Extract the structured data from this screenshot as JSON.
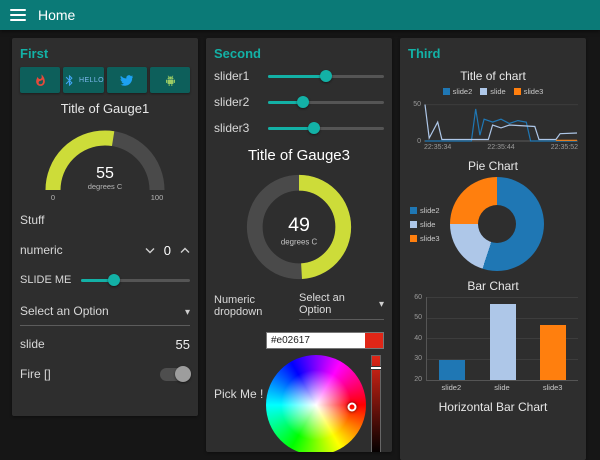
{
  "header": {
    "title": "Home"
  },
  "colors": {
    "accent": "#13b1a6",
    "gauge": "#cddc39",
    "header-bg": "#0b7a77",
    "panel-bg": "#2e2e2e",
    "page-bg": "#161616",
    "button-bg": "#0d5f5b"
  },
  "first": {
    "title": "First",
    "buttons": {
      "hello_label": "HELLO"
    },
    "gauge1": {
      "title": "Title of Gauge1",
      "value": 55,
      "units": "degrees C",
      "min": 0,
      "max": 100
    },
    "stuff_label": "Stuff",
    "numeric": {
      "label": "numeric",
      "value": 0
    },
    "slide_me": {
      "label": "SLIDE ME",
      "value": 30,
      "min": 0,
      "max": 100
    },
    "dropdown_placeholder": "Select an Option",
    "slide_row": {
      "label": "slide",
      "value": 55
    },
    "fire": {
      "label": "Fire []",
      "on": false
    }
  },
  "second": {
    "title": "Second",
    "sliders": [
      {
        "label": "slider1",
        "value": 50,
        "min": 0,
        "max": 100
      },
      {
        "label": "slider2",
        "value": 30,
        "min": 0,
        "max": 100
      },
      {
        "label": "slider3",
        "value": 40,
        "min": 0,
        "max": 100
      }
    ],
    "gauge3": {
      "title": "Title of Gauge3",
      "value": 49,
      "units": "degrees C",
      "min": 0,
      "max": 100
    },
    "numeric_dropdown": {
      "label": "Numeric dropdown",
      "placeholder": "Select an Option"
    },
    "colour_picker": {
      "label": "Pick Me !",
      "hex": "#e02617"
    }
  },
  "third": {
    "title": "Third"
  },
  "chart_data": [
    {
      "type": "line",
      "title": "Title of chart",
      "legend": [
        "slide2",
        "slide",
        "slide3"
      ],
      "colors": [
        "#1f77b4",
        "#aec7e8",
        "#ff7f0e"
      ],
      "x_ticks": [
        "22:35:34",
        "22:35:44",
        "22:35:52"
      ],
      "y_ticks": [
        50,
        0
      ],
      "xlim": [
        0,
        18
      ],
      "ylim": [
        0,
        55
      ],
      "series": [
        {
          "name": "slide2",
          "points": [
            [
              0,
              0
            ],
            [
              5.5,
              0
            ],
            [
              6,
              44
            ],
            [
              6.5,
              8
            ],
            [
              7,
              30
            ],
            [
              8,
              26
            ],
            [
              9,
              30
            ],
            [
              10,
              24
            ],
            [
              11,
              28
            ],
            [
              12,
              26
            ],
            [
              12.5,
              0
            ],
            [
              18,
              0
            ]
          ]
        },
        {
          "name": "slide",
          "points": [
            [
              0,
              50
            ],
            [
              0.5,
              4
            ],
            [
              1.5,
              26
            ],
            [
              2,
              2
            ],
            [
              7.5,
              2
            ],
            [
              8,
              22
            ],
            [
              9,
              18
            ],
            [
              10,
              22
            ],
            [
              13,
              20
            ],
            [
              13.5,
              2
            ],
            [
              15.5,
              2
            ],
            [
              16,
              10
            ],
            [
              18,
              11
            ]
          ]
        },
        {
          "name": "slide3",
          "points": [
            [
              15.5,
              1
            ],
            [
              18,
              1
            ]
          ]
        }
      ]
    },
    {
      "type": "pie",
      "title": "Pie Chart",
      "labels": [
        "slide2",
        "slide",
        "slide3"
      ],
      "values": [
        55,
        20,
        25
      ],
      "colors": [
        "#1f77b4",
        "#aec7e8",
        "#ff7f0e"
      ],
      "donut": true,
      "legend_position": "left"
    },
    {
      "type": "bar",
      "title": "Bar Chart",
      "categories": [
        "slide2",
        "slide",
        "slide3"
      ],
      "values": [
        30,
        57,
        47
      ],
      "colors": [
        "#1f77b4",
        "#aec7e8",
        "#ff7f0e"
      ],
      "ylim": [
        20,
        60
      ],
      "y_ticks": [
        20,
        30,
        40,
        50,
        60
      ]
    },
    {
      "type": "bar",
      "title": "Horizontal Bar Chart"
    }
  ]
}
